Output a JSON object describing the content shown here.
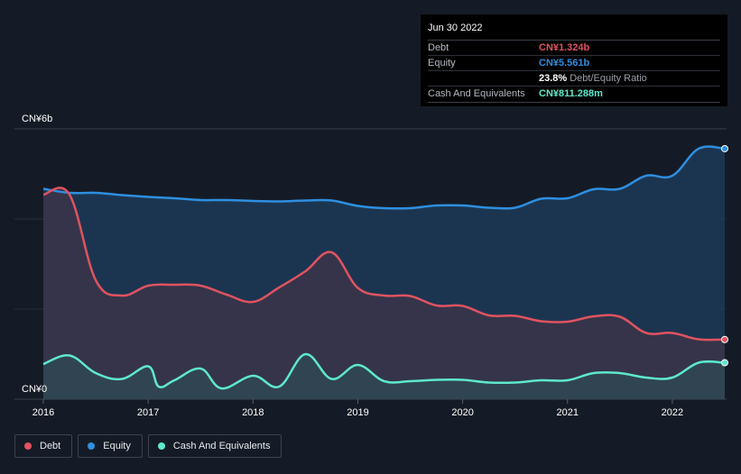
{
  "chart_data": {
    "type": "area",
    "y_label_top": "CN¥6b",
    "y_label_bottom": "CN¥0",
    "ylim": [
      0,
      6
    ],
    "xlim": [
      2016.0,
      2022.5
    ],
    "x_ticks": [
      {
        "value": 2016,
        "label": "2016"
      },
      {
        "value": 2017,
        "label": "2017"
      },
      {
        "value": 2018,
        "label": "2018"
      },
      {
        "value": 2019,
        "label": "2019"
      },
      {
        "value": 2020,
        "label": "2020"
      },
      {
        "value": 2021,
        "label": "2021"
      },
      {
        "value": 2022,
        "label": "2022"
      }
    ],
    "series": [
      {
        "name": "Equity",
        "color": "#2e8fe0",
        "points": [
          [
            2016.0,
            4.67
          ],
          [
            2016.25,
            4.58
          ],
          [
            2016.5,
            4.58
          ],
          [
            2016.75,
            4.53
          ],
          [
            2017.0,
            4.49
          ],
          [
            2017.25,
            4.46
          ],
          [
            2017.5,
            4.42
          ],
          [
            2017.75,
            4.42
          ],
          [
            2018.0,
            4.4
          ],
          [
            2018.25,
            4.39
          ],
          [
            2018.5,
            4.41
          ],
          [
            2018.75,
            4.41
          ],
          [
            2019.0,
            4.29
          ],
          [
            2019.25,
            4.24
          ],
          [
            2019.5,
            4.24
          ],
          [
            2019.75,
            4.3
          ],
          [
            2020.0,
            4.3
          ],
          [
            2020.25,
            4.25
          ],
          [
            2020.5,
            4.25
          ],
          [
            2020.75,
            4.45
          ],
          [
            2021.0,
            4.46
          ],
          [
            2021.25,
            4.66
          ],
          [
            2021.5,
            4.67
          ],
          [
            2021.75,
            4.96
          ],
          [
            2022.0,
            4.96
          ],
          [
            2022.25,
            5.56
          ],
          [
            2022.5,
            5.561
          ]
        ]
      },
      {
        "name": "Debt",
        "color": "#e0535f",
        "points": [
          [
            2016.0,
            4.54
          ],
          [
            2016.25,
            4.54
          ],
          [
            2016.5,
            2.64
          ],
          [
            2016.75,
            2.3
          ],
          [
            2017.0,
            2.52
          ],
          [
            2017.25,
            2.54
          ],
          [
            2017.5,
            2.52
          ],
          [
            2017.75,
            2.32
          ],
          [
            2018.0,
            2.16
          ],
          [
            2018.25,
            2.48
          ],
          [
            2018.5,
            2.84
          ],
          [
            2018.75,
            3.26
          ],
          [
            2019.0,
            2.47
          ],
          [
            2019.25,
            2.3
          ],
          [
            2019.5,
            2.29
          ],
          [
            2019.75,
            2.08
          ],
          [
            2020.0,
            2.07
          ],
          [
            2020.25,
            1.86
          ],
          [
            2020.5,
            1.85
          ],
          [
            2020.75,
            1.73
          ],
          [
            2021.0,
            1.72
          ],
          [
            2021.25,
            1.84
          ],
          [
            2021.5,
            1.83
          ],
          [
            2021.75,
            1.47
          ],
          [
            2022.0,
            1.47
          ],
          [
            2022.25,
            1.33
          ],
          [
            2022.5,
            1.324
          ]
        ]
      },
      {
        "name": "Cash And Equivalents",
        "color": "#5ee8cc",
        "points": [
          [
            2016.0,
            0.78
          ],
          [
            2016.25,
            0.97
          ],
          [
            2016.5,
            0.58
          ],
          [
            2016.75,
            0.45
          ],
          [
            2017.0,
            0.73
          ],
          [
            2017.1,
            0.28
          ],
          [
            2017.25,
            0.42
          ],
          [
            2017.5,
            0.68
          ],
          [
            2017.7,
            0.24
          ],
          [
            2018.0,
            0.52
          ],
          [
            2018.25,
            0.28
          ],
          [
            2018.5,
            1.0
          ],
          [
            2018.75,
            0.45
          ],
          [
            2019.0,
            0.76
          ],
          [
            2019.25,
            0.4
          ],
          [
            2019.5,
            0.4
          ],
          [
            2019.75,
            0.43
          ],
          [
            2020.0,
            0.43
          ],
          [
            2020.25,
            0.37
          ],
          [
            2020.5,
            0.37
          ],
          [
            2020.75,
            0.42
          ],
          [
            2021.0,
            0.42
          ],
          [
            2021.25,
            0.58
          ],
          [
            2021.5,
            0.58
          ],
          [
            2021.75,
            0.48
          ],
          [
            2022.0,
            0.48
          ],
          [
            2022.25,
            0.81
          ],
          [
            2022.5,
            0.811
          ]
        ]
      }
    ]
  },
  "tooltip": {
    "date": "Jun 30 2022",
    "rows": [
      {
        "label": "Debt",
        "value": "CN¥1.324b",
        "color": "#e0535f",
        "sub": ""
      },
      {
        "label": "Equity",
        "value": "CN¥5.561b",
        "color": "#2e8fe0",
        "sub": ""
      },
      {
        "label": "",
        "value": "23.8%",
        "color": "#ffffff",
        "sub": "Debt/Equity Ratio"
      },
      {
        "label": "Cash And Equivalents",
        "value": "CN¥811.288m",
        "color": "#5ee8cc",
        "sub": ""
      }
    ]
  },
  "legend": [
    {
      "label": "Debt",
      "color": "#e0535f"
    },
    {
      "label": "Equity",
      "color": "#2e8fe0"
    },
    {
      "label": "Cash And Equivalents",
      "color": "#5ee8cc"
    }
  ]
}
